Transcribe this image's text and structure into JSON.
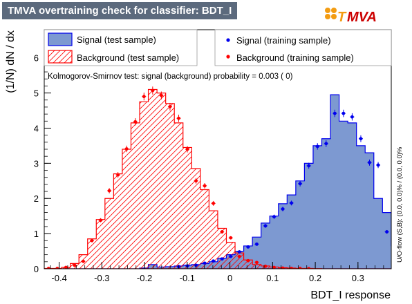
{
  "title": "TMVA overtraining check for classifier: BDT_I",
  "logo": {
    "letter": "T",
    "text": "MVA"
  },
  "colors": {
    "signal_fill": "#7d99d1",
    "signal_line": "#0000ee",
    "background_hatch": "#ff0000",
    "title_bar": "#5c6a7d",
    "logo_orange": "#f39c12",
    "logo_red": "#cc0000"
  },
  "legend_left": {
    "signal_test": "Signal (test sample)",
    "background_test": "Background (test sample)"
  },
  "legend_right": {
    "signal_train": "Signal (training sample)",
    "background_train": "Background (training sample)"
  },
  "ks_text": "Kolmogorov-Smirnov test: signal (background) probability = 0.003 (    0)",
  "overflow_text": "U/O-flow (S,B): (0.0, 0.0)% / (0.0, 0.0)%",
  "chart_data": {
    "type": "histogram",
    "xlabel": "BDT_I response",
    "ylabel": "(1/N) dN / dx",
    "xlim": [
      -0.435,
      0.378
    ],
    "ylim": [
      0,
      6.8
    ],
    "xticks": [
      -0.4,
      -0.3,
      -0.2,
      -0.1,
      0,
      0.1,
      0.2,
      0.3
    ],
    "xtick_labels": [
      "-0.4",
      "-0.3",
      "-0.2",
      "-0.1",
      "0",
      "0.1",
      "0.2",
      "0.3"
    ],
    "yticks": [
      0,
      1,
      2,
      3,
      4,
      5,
      6
    ],
    "ytick_labels": [
      "0",
      "1",
      "2",
      "3",
      "4",
      "5",
      "6"
    ],
    "bin_edges_start": -0.435,
    "bin_width": 0.02032,
    "signal_test": [
      0,
      0,
      0,
      0,
      0,
      0,
      0,
      0,
      0,
      0,
      0,
      0.02,
      0.12,
      0.05,
      0.06,
      0.08,
      0.1,
      0.12,
      0.15,
      0.2,
      0.3,
      0.4,
      0.5,
      0.65,
      0.9,
      1.3,
      1.5,
      1.85,
      2.1,
      2.5,
      3.0,
      3.5,
      3.7,
      4.95,
      4.2,
      4.15,
      3.5,
      3.3,
      2.0,
      1.6,
      0.65,
      0.3
    ],
    "background_test": [
      0.01,
      0.01,
      0.04,
      0.15,
      0.4,
      0.85,
      1.4,
      2.0,
      2.7,
      3.4,
      4.15,
      4.75,
      5.1,
      5.0,
      4.7,
      4.15,
      3.45,
      2.85,
      2.25,
      1.65,
      1.15,
      0.75,
      0.45,
      0.25,
      0.12,
      0.08,
      0.05,
      0.03,
      0.02,
      0.01,
      0.01,
      0.005,
      0,
      0,
      0,
      0,
      0,
      0,
      0,
      0,
      0,
      0
    ],
    "signal_train": [
      0,
      0,
      0,
      0,
      0,
      0,
      0,
      0,
      0,
      0,
      0,
      0,
      0,
      0,
      0,
      0.06,
      0.08,
      0.1,
      0.16,
      0.22,
      0.28,
      0.35,
      0.48,
      0.62,
      0.7,
      1.22,
      1.48,
      1.7,
      1.87,
      2.42,
      2.93,
      3.48,
      3.56,
      4.42,
      4.42,
      4.32,
      3.7,
      3.02,
      2.95,
      1.05,
      0.7,
      0.25
    ],
    "background_train": [
      0.01,
      0.01,
      0.04,
      0.1,
      0.21,
      0.8,
      1.38,
      2.22,
      2.67,
      3.41,
      4.18,
      4.9,
      5.07,
      4.93,
      4.61,
      4.28,
      3.4,
      2.5,
      2.36,
      1.86,
      1.05,
      0.88,
      0.35,
      0.23,
      0.18,
      0.07,
      0.04,
      0.02,
      0.01,
      0.01,
      0.005,
      0,
      0,
      0,
      0,
      0,
      0,
      0,
      0,
      0,
      0,
      0
    ]
  }
}
